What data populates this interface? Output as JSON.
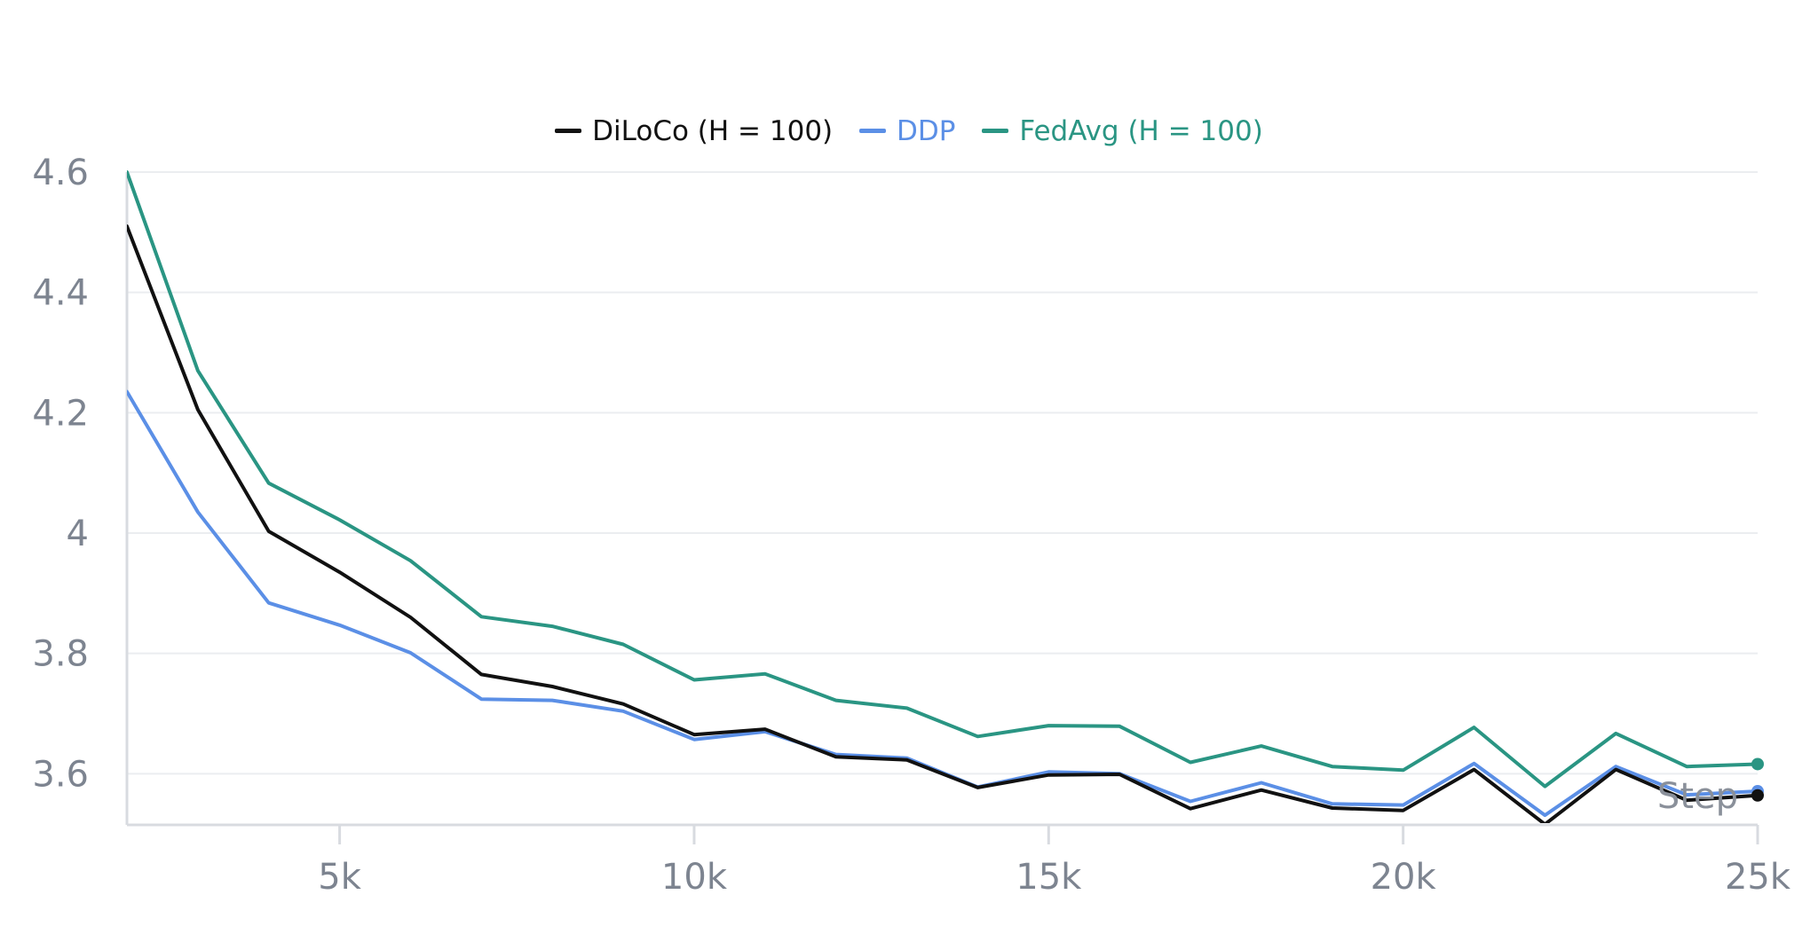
{
  "chart_data": {
    "type": "line",
    "xlabel": "Step",
    "ylabel": "",
    "xlim": [
      2000,
      25000
    ],
    "ylim": [
      3.515,
      4.6
    ],
    "x_ticks": [
      5000,
      10000,
      15000,
      20000,
      25000
    ],
    "x_tick_labels": [
      "5k",
      "10k",
      "15k",
      "20k",
      "25k"
    ],
    "y_ticks": [
      3.6,
      3.8,
      4.0,
      4.2,
      4.4,
      4.6
    ],
    "y_tick_labels": [
      "3.6",
      "3.8",
      "4",
      "4.2",
      "4.4",
      "4.6"
    ],
    "grid": true,
    "legend_position": "top-center",
    "x": [
      2000,
      3000,
      4000,
      5000,
      6000,
      7000,
      8000,
      9000,
      10000,
      11000,
      12000,
      13000,
      14000,
      15000,
      16000,
      17000,
      18000,
      19000,
      20000,
      21000,
      22000,
      23000,
      24000,
      25000
    ],
    "series": [
      {
        "name": "DiLoCo (H = 100)",
        "color": "#111111",
        "values": [
          4.51,
          4.205,
          4.003,
          3.935,
          3.86,
          3.765,
          3.745,
          3.716,
          3.665,
          3.674,
          3.628,
          3.623,
          3.577,
          3.598,
          3.599,
          3.542,
          3.573,
          3.543,
          3.539,
          3.607,
          3.516,
          3.607,
          3.556,
          3.564
        ]
      },
      {
        "name": "DDP",
        "color": "#5b8fe6",
        "values": [
          4.235,
          4.035,
          3.884,
          3.847,
          3.801,
          3.724,
          3.722,
          3.704,
          3.657,
          3.67,
          3.632,
          3.626,
          3.578,
          3.603,
          3.6,
          3.554,
          3.585,
          3.55,
          3.548,
          3.617,
          3.531,
          3.612,
          3.565,
          3.571
        ]
      },
      {
        "name": "FedAvg (H = 100)",
        "color": "#2a9583",
        "values": [
          4.6,
          4.27,
          4.083,
          4.022,
          3.954,
          3.861,
          3.845,
          3.815,
          3.756,
          3.766,
          3.722,
          3.709,
          3.662,
          3.68,
          3.679,
          3.619,
          3.646,
          3.612,
          3.606,
          3.677,
          3.579,
          3.667,
          3.612,
          3.616
        ]
      }
    ]
  }
}
